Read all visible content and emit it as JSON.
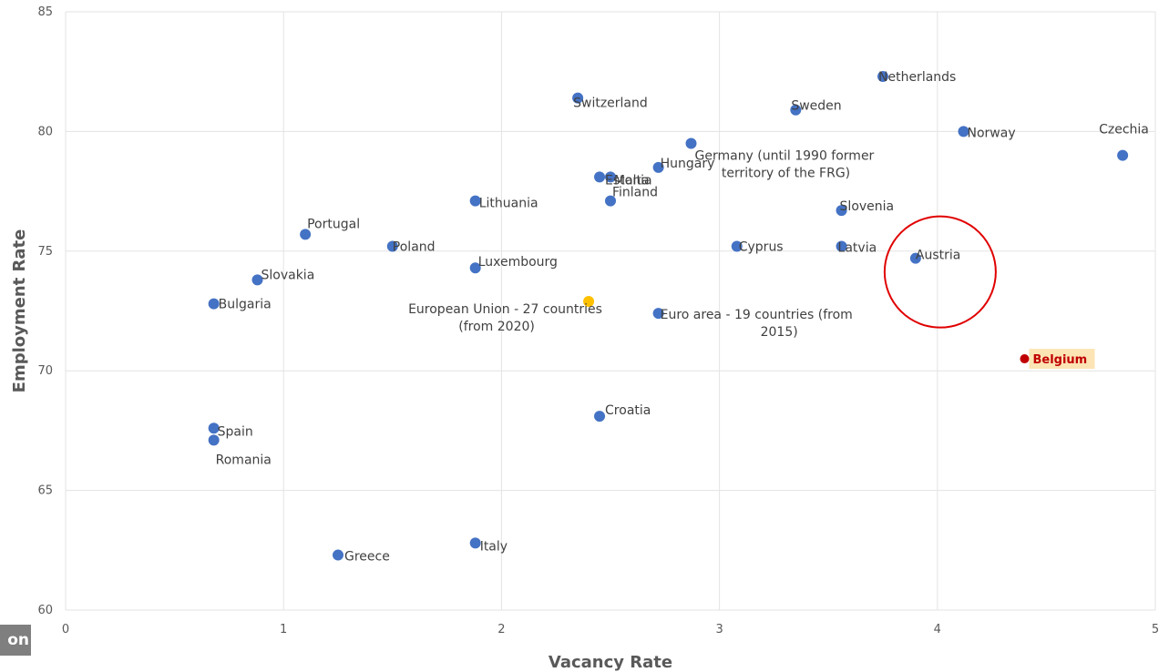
{
  "corner_tag": "on",
  "chart_data": {
    "type": "scatter",
    "xlabel": "Vacancy Rate",
    "ylabel": "Employment Rate",
    "xlim": [
      0,
      5
    ],
    "ylim": [
      60,
      85
    ],
    "x_ticks": [
      0,
      1,
      2,
      3,
      4,
      5
    ],
    "y_ticks": [
      60,
      65,
      70,
      75,
      80,
      85
    ],
    "grid": true,
    "colors": {
      "point": "#4472c4",
      "eu_point": "#ffc000",
      "highlight_point": "#c00000",
      "highlight_label_bg": "#fce4b4",
      "circle": "#e00000"
    },
    "points": [
      {
        "label": "Netherlands",
        "x": 3.75,
        "y": 82.3,
        "kind": "normal"
      },
      {
        "label": "Switzerland",
        "x": 2.35,
        "y": 81.4,
        "kind": "normal"
      },
      {
        "label": "Sweden",
        "x": 3.35,
        "y": 80.9,
        "kind": "normal"
      },
      {
        "label": "Norway",
        "x": 4.12,
        "y": 80.0,
        "kind": "normal"
      },
      {
        "label": "Czechia",
        "x": 4.85,
        "y": 79.0,
        "kind": "normal"
      },
      {
        "label": "Germany (until 1990 former territory of the FRG)",
        "lines": [
          "Germany (until 1990 former",
          "territory of the FRG)"
        ],
        "x": 2.87,
        "y": 79.5,
        "kind": "normal"
      },
      {
        "label": "Hungary",
        "x": 2.72,
        "y": 78.5,
        "kind": "normal"
      },
      {
        "label": "Estonia",
        "x": 2.45,
        "y": 78.1,
        "kind": "normal"
      },
      {
        "label": "Malta",
        "x": 2.5,
        "y": 78.1,
        "kind": "normal"
      },
      {
        "label": "Finland",
        "x": 2.5,
        "y": 77.1,
        "kind": "normal"
      },
      {
        "label": "Lithuania",
        "x": 1.88,
        "y": 77.1,
        "kind": "normal"
      },
      {
        "label": "Slovenia",
        "x": 3.56,
        "y": 76.7,
        "kind": "normal"
      },
      {
        "label": "Portugal",
        "x": 1.1,
        "y": 75.7,
        "kind": "normal"
      },
      {
        "label": "Poland",
        "x": 1.5,
        "y": 75.2,
        "kind": "normal"
      },
      {
        "label": "Latvia",
        "x": 3.56,
        "y": 75.2,
        "kind": "normal"
      },
      {
        "label": "Cyprus",
        "x": 3.08,
        "y": 75.2,
        "kind": "normal"
      },
      {
        "label": "Austria",
        "x": 3.9,
        "y": 74.7,
        "kind": "normal"
      },
      {
        "label": "Luxembourg",
        "x": 1.88,
        "y": 74.3,
        "kind": "normal"
      },
      {
        "label": "Slovakia",
        "x": 0.88,
        "y": 73.8,
        "kind": "normal"
      },
      {
        "label": "Bulgaria",
        "x": 0.68,
        "y": 72.8,
        "kind": "normal"
      },
      {
        "label": "European Union - 27 countries (from 2020)",
        "lines": [
          "European Union - 27 countries",
          "(from 2020)"
        ],
        "x": 2.4,
        "y": 72.9,
        "kind": "eu"
      },
      {
        "label": "Euro area - 19 countries (from 2015)",
        "lines": [
          "Euro area - 19 countries  (from",
          "2015)"
        ],
        "x": 2.72,
        "y": 72.4,
        "kind": "normal"
      },
      {
        "label": "Belgium",
        "x": 4.4,
        "y": 70.5,
        "kind": "highlight"
      },
      {
        "label": "Croatia",
        "x": 2.45,
        "y": 68.1,
        "kind": "normal"
      },
      {
        "label": "Spain",
        "x": 0.68,
        "y": 67.6,
        "kind": "normal"
      },
      {
        "label": "Romania",
        "x": 0.68,
        "y": 67.1,
        "kind": "normal"
      },
      {
        "label": "Italy",
        "x": 1.88,
        "y": 62.8,
        "kind": "normal"
      },
      {
        "label": "Greece",
        "x": 1.25,
        "y": 62.3,
        "kind": "normal"
      }
    ],
    "annotations": [
      {
        "type": "circle",
        "target": "Austria"
      }
    ]
  }
}
